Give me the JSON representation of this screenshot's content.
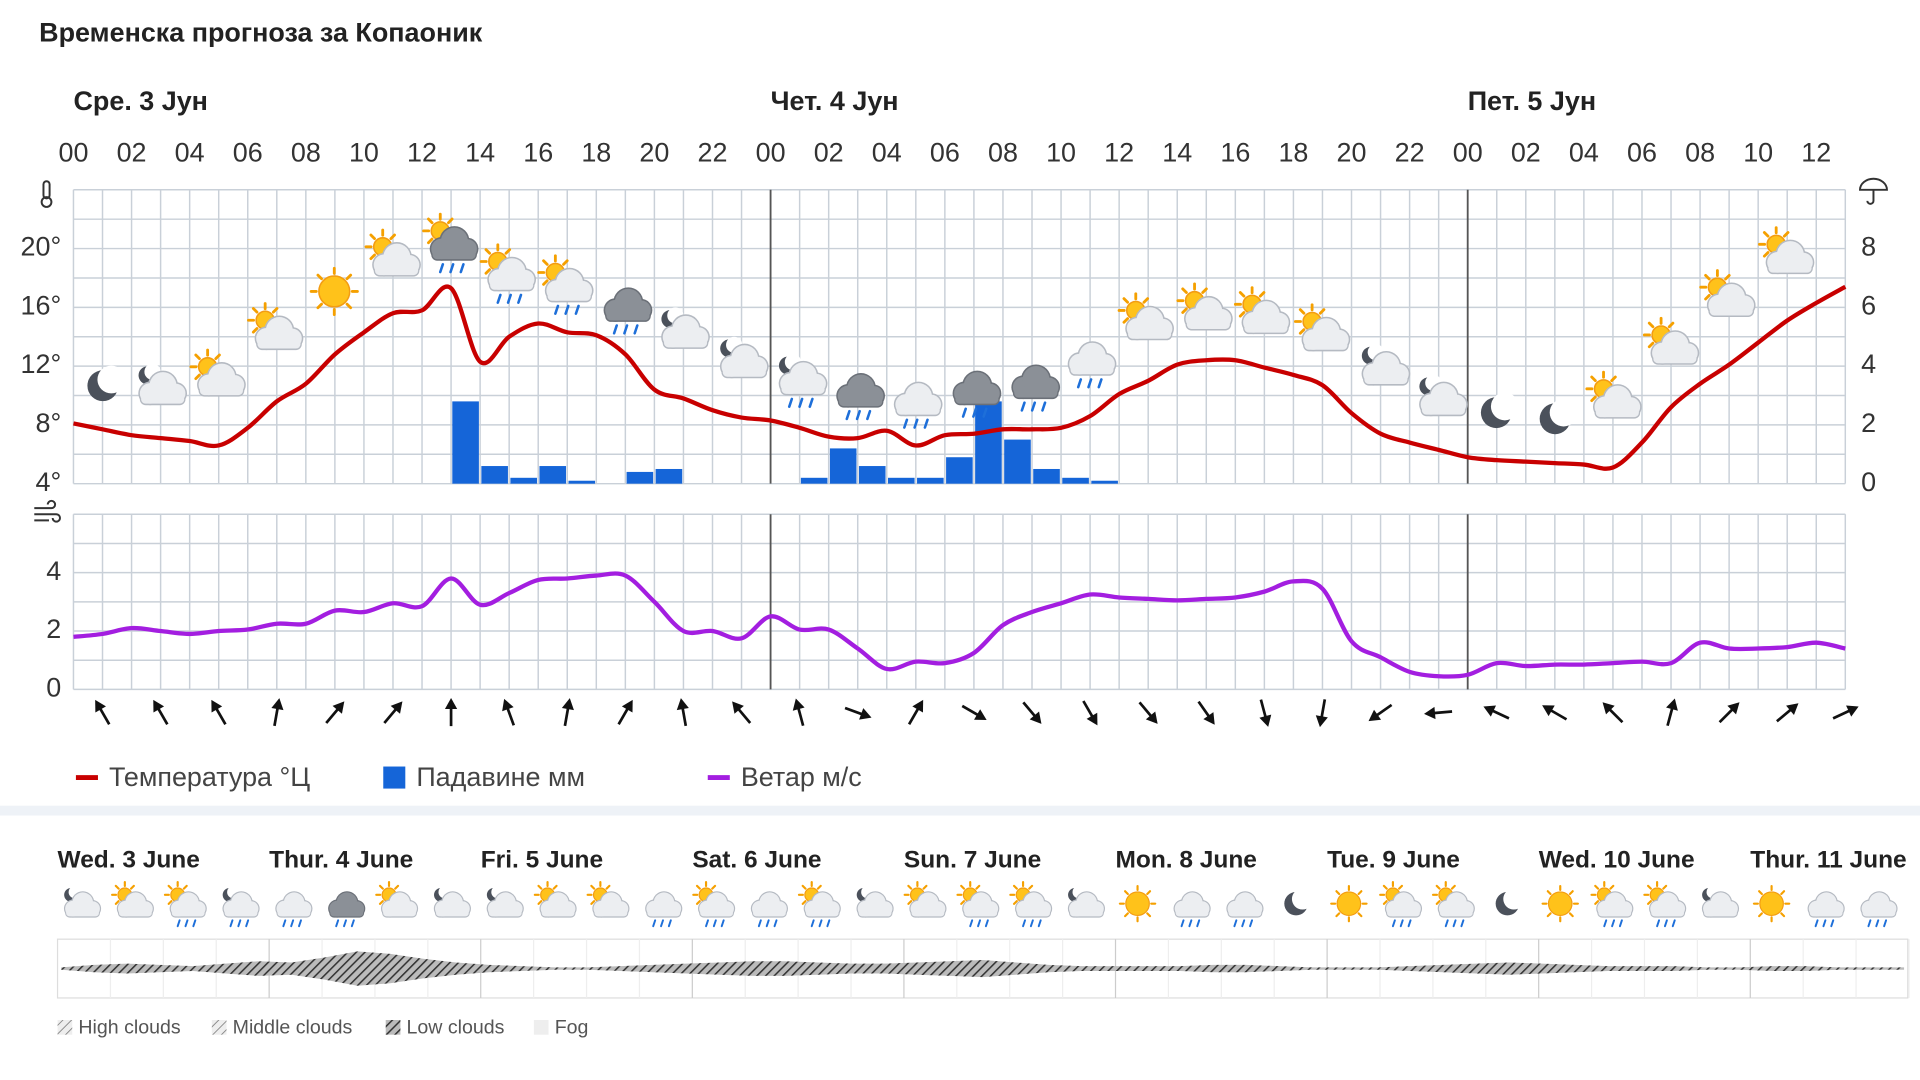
{
  "title": "Временска прогноза за Копаоник",
  "chart_data": [
    {
      "type": "line",
      "day_labels": [
        "Сре. 3 Јун",
        "Чет. 4 Јун",
        "Пет. 5 Јун"
      ],
      "categories": [
        "00",
        null,
        "02",
        null,
        "04",
        null,
        "06",
        null,
        "08",
        null,
        "10",
        null,
        "12",
        null,
        "14",
        null,
        "16",
        null,
        "18",
        null,
        "20",
        null,
        "22",
        null,
        "00",
        null,
        "02",
        null,
        "04",
        null,
        "06",
        null,
        "08",
        null,
        "10",
        null,
        "12",
        null,
        "14",
        null,
        "16",
        null,
        "18",
        null,
        "20",
        null,
        "22",
        null,
        "00",
        null,
        "02",
        null,
        "04",
        null,
        "06",
        null,
        "08",
        null,
        "10",
        null,
        "12",
        null
      ],
      "ylim": [
        4,
        24
      ],
      "yticks": [
        {
          "value": 4,
          "label": "4°"
        },
        {
          "value": 8,
          "label": "8°"
        },
        {
          "value": 12,
          "label": "12°"
        },
        {
          "value": 16,
          "label": "16°"
        },
        {
          "value": 20,
          "label": "20°"
        }
      ],
      "y2lim": [
        0,
        10
      ],
      "y2ticks": [
        0,
        2,
        4,
        6,
        8
      ],
      "grid": true,
      "series": [
        {
          "name": "Температура °Ц",
          "color": "#c80000",
          "values": [
            8.1,
            7.7,
            7.3,
            7.1,
            6.9,
            6.6,
            7.8,
            9.6,
            10.8,
            12.8,
            14.3,
            15.6,
            15.8,
            17.3,
            12.3,
            14,
            14.9,
            14.3,
            14.1,
            12.8,
            10.4,
            9.8,
            9,
            8.5,
            8.3,
            7.8,
            7.2,
            7.1,
            7.6,
            6.6,
            7.3,
            7.4,
            7.7,
            7.7,
            7.8,
            8.6,
            10.1,
            11,
            12.1,
            12.4,
            12.4,
            11.9,
            11.4,
            10.7,
            8.8,
            7.4,
            6.8,
            6.3,
            5.8,
            5.6,
            5.5,
            5.4,
            5.3,
            5.1,
            6.8,
            9.2,
            10.8,
            12.1,
            13.6,
            15.1,
            16.3,
            17.4
          ]
        },
        {
          "name": "Падавине мм",
          "type": "bar",
          "axis": "y2",
          "color": "#1565d8",
          "values": [
            0,
            0,
            0,
            0,
            0,
            0,
            0,
            0,
            0,
            0,
            0,
            0,
            0,
            2.8,
            0.6,
            0.2,
            0.6,
            0.1,
            0,
            0.4,
            0.5,
            0,
            0,
            0,
            0,
            0.2,
            1.2,
            0.6,
            0.2,
            0.2,
            0.9,
            2.8,
            1.5,
            0.5,
            0.2,
            0.1,
            0,
            0,
            0,
            0,
            0,
            0,
            0,
            0,
            0,
            0,
            0,
            0,
            0,
            0,
            0,
            0,
            0,
            0,
            0,
            0,
            0,
            0,
            0,
            0,
            0,
            0
          ]
        }
      ]
    },
    {
      "type": "line",
      "ylim": [
        0,
        6
      ],
      "yticks": [
        0,
        2,
        4
      ],
      "grid": true,
      "series": [
        {
          "name": "Ветар м/с",
          "color": "#a31ee0",
          "values": [
            1.8,
            1.9,
            2.1,
            2.0,
            1.9,
            2.0,
            2.05,
            2.25,
            2.25,
            2.7,
            2.65,
            2.95,
            2.85,
            3.8,
            2.9,
            3.3,
            3.75,
            3.8,
            3.9,
            3.9,
            3.0,
            2.0,
            2.0,
            1.75,
            2.5,
            2.05,
            2.05,
            1.4,
            0.7,
            0.95,
            0.9,
            1.25,
            2.2,
            2.65,
            2.95,
            3.25,
            3.15,
            3.1,
            3.05,
            3.1,
            3.15,
            3.35,
            3.7,
            3.45,
            1.65,
            1.1,
            0.6,
            0.45,
            0.5,
            0.9,
            0.8,
            0.85,
            0.85,
            0.9,
            0.95,
            0.9,
            1.6,
            1.4,
            1.4,
            1.45,
            1.6,
            1.4
          ]
        }
      ],
      "wind_direction": [
        null,
        330,
        null,
        330,
        null,
        330,
        null,
        10,
        null,
        40,
        null,
        40,
        null,
        0,
        null,
        340,
        null,
        10,
        null,
        30,
        null,
        350,
        null,
        320,
        null,
        345,
        null,
        110,
        null,
        30,
        null,
        120,
        null,
        140,
        null,
        150,
        null,
        140,
        null,
        145,
        null,
        165,
        null,
        190,
        null,
        235,
        null,
        265,
        null,
        295,
        null,
        300,
        null,
        315,
        null,
        15,
        null,
        45,
        null,
        50,
        null,
        65
      ]
    }
  ],
  "outlook": {
    "days": [
      "Wed. 3 June",
      "Thur. 4 June",
      "Fri. 5 June",
      "Sat. 6 June",
      "Sun. 7 June",
      "Mon. 8 June",
      "Tue. 9 June",
      "Wed. 10 June",
      "Thur. 11 June"
    ],
    "legend": [
      "High clouds",
      "Middle clouds",
      "Low clouds",
      "Fog"
    ]
  }
}
